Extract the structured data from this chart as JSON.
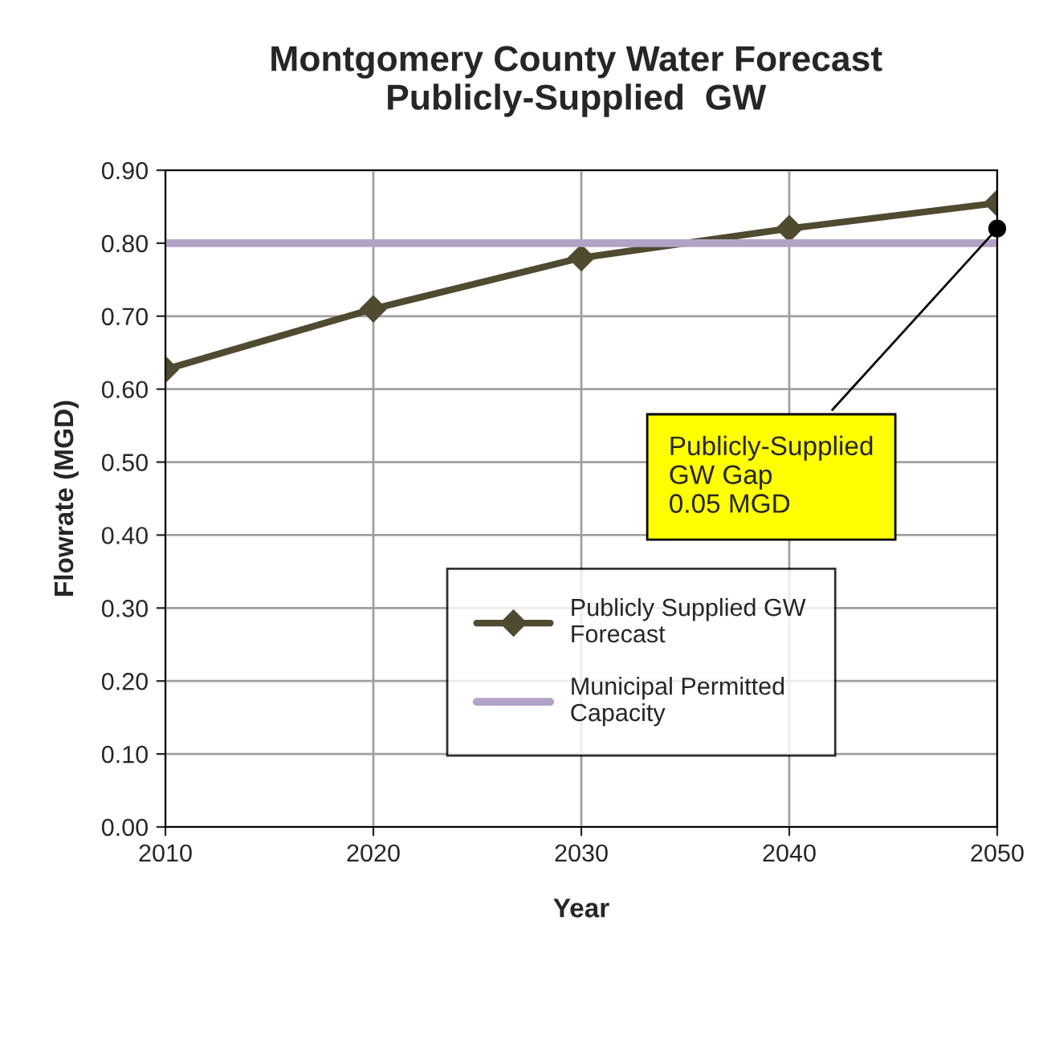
{
  "chart_data": {
    "type": "line",
    "title": "Montgomery County Water Forecast\nPublicly-Supplied  GW",
    "xlabel": "Year",
    "ylabel": "Flowrate (MGD)",
    "categories": [
      "2010",
      "2020",
      "2030",
      "2040",
      "2050"
    ],
    "series": [
      {
        "name": "Publicly Supplied GW\nForecast",
        "color": "#4f4a30",
        "marker": "diamond",
        "values": [
          0.627,
          0.71,
          0.78,
          0.82,
          0.855
        ]
      },
      {
        "name": "Municipal Permitted\nCapacity",
        "color": "#b3a2c7",
        "marker": "none",
        "values": [
          0.8,
          0.8,
          0.8,
          0.8,
          0.8
        ]
      }
    ],
    "ylim": [
      0,
      0.9
    ],
    "yticks": [
      {
        "value": 0,
        "label": "0.00"
      },
      {
        "value": 0.1,
        "label": "0.10"
      },
      {
        "value": 0.2,
        "label": "0.20"
      },
      {
        "value": 0.3,
        "label": "0.30"
      },
      {
        "value": 0.4,
        "label": "0.40"
      },
      {
        "value": 0.5,
        "label": "0.50"
      },
      {
        "value": 0.6,
        "label": "0.60"
      },
      {
        "value": 0.7,
        "label": "0.70"
      },
      {
        "value": 0.8,
        "label": "0.80"
      },
      {
        "value": 0.9,
        "label": "0.90"
      }
    ],
    "annotations": [
      {
        "text": "Publicly-Supplied\nGW Gap\n0.05 MGD",
        "x": "2050",
        "y": 0.82
      }
    ],
    "grid": true,
    "legend": "bottom right",
    "line_style": "solid"
  }
}
